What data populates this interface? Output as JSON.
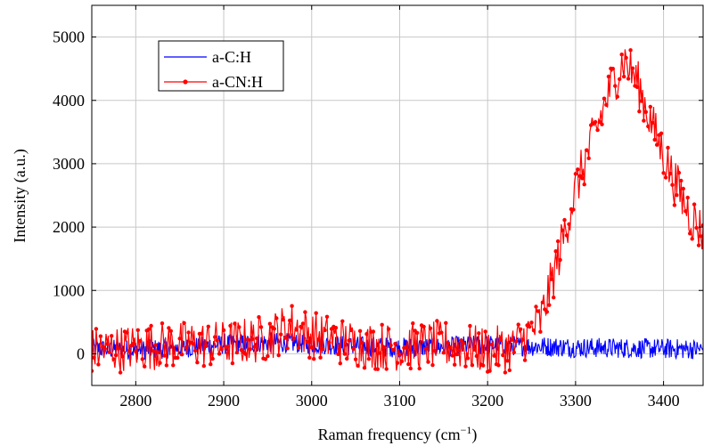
{
  "chart_data": {
    "type": "line",
    "xlabel": "Raman frequency (cm",
    "xlabel_sup": "−1",
    "xlabel_close": ")",
    "ylabel": "Intensity (a.u.)",
    "xlim": [
      2750,
      3445
    ],
    "ylim": [
      -500,
      5500
    ],
    "xticks": [
      2800,
      2900,
      3000,
      3100,
      3200,
      3300,
      3400
    ],
    "yticks": [
      0,
      1000,
      2000,
      3000,
      4000,
      5000
    ],
    "grid": true,
    "legend_position": "top-left",
    "series": [
      {
        "name": "a-C:H",
        "color": "#0000ff",
        "marker": "none",
        "x": [
          2750,
          2800,
          2850,
          2900,
          2950,
          3000,
          3050,
          3100,
          3150,
          3200,
          3250,
          3300,
          3350,
          3400,
          3445
        ],
        "y": [
          80,
          60,
          90,
          150,
          180,
          160,
          120,
          100,
          110,
          140,
          120,
          100,
          90,
          80,
          70
        ],
        "noise_amplitude": 160
      },
      {
        "name": "a-CN:H",
        "color": "#ff0000",
        "marker": "circle",
        "x": [
          2750,
          2800,
          2850,
          2900,
          2950,
          2975,
          3000,
          3050,
          3100,
          3150,
          3200,
          3230,
          3260,
          3280,
          3300,
          3320,
          3340,
          3355,
          3370,
          3390,
          3410,
          3430,
          3445
        ],
        "y": [
          50,
          100,
          150,
          150,
          250,
          450,
          300,
          150,
          100,
          150,
          50,
          100,
          500,
          1500,
          2600,
          3400,
          4200,
          4650,
          4300,
          3500,
          2800,
          2200,
          1900
        ],
        "noise_amplitude": 380
      }
    ]
  }
}
